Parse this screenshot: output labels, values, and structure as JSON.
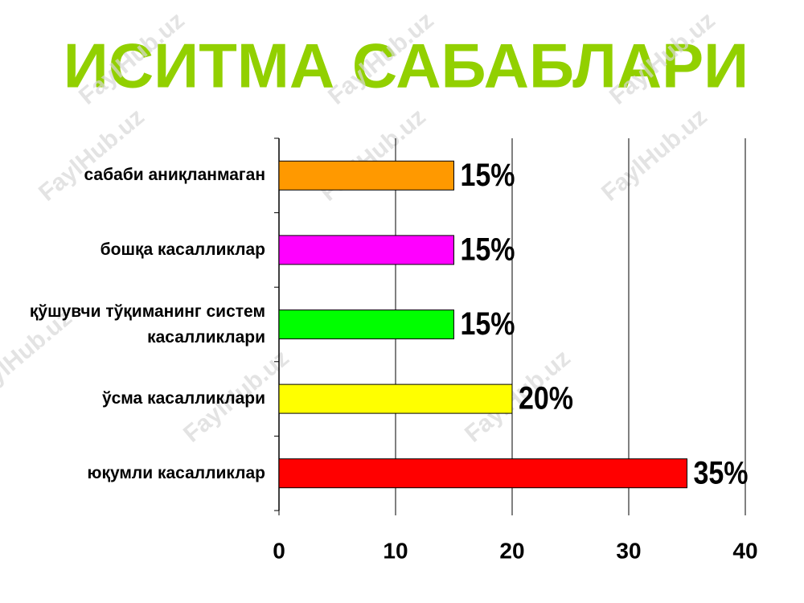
{
  "chart_data": {
    "type": "bar",
    "orientation": "horizontal",
    "title": "ИСИТМА САБАБЛАРИ",
    "watermark": "FaylHub.uz",
    "categories": [
      "сабаби аниқланмаган",
      "бошқа касалликлар",
      "қўшувчи тўқиманинг систем\nкасалликлари",
      "ўсма касалликлари",
      "юқумли касалликлар"
    ],
    "values": [
      15,
      15,
      15,
      20,
      35
    ],
    "value_labels": [
      "15%",
      "15%",
      "15%",
      "20%",
      "35%"
    ],
    "colors": [
      "#ff9900",
      "#ff00ff",
      "#00ff00",
      "#ffff00",
      "#ff0000"
    ],
    "xlim": [
      0,
      40
    ],
    "xticks": [
      0,
      10,
      20,
      30,
      40
    ],
    "grid": true
  }
}
